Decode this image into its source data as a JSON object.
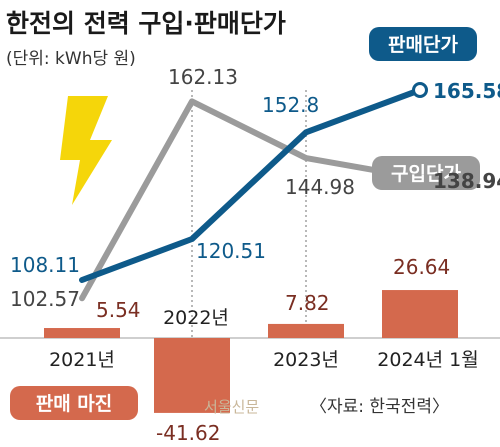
{
  "header": {
    "title": "한전의 전력 구입·판매단가",
    "unit": "(단위: kWh당 원)"
  },
  "legend": {
    "sell_label": "판매단가",
    "buy_label": "구입단가",
    "margin_label": "판매 마진"
  },
  "colors": {
    "sell": "#0e5a8a",
    "buy": "#9b9b9b",
    "margin": "#d4694d",
    "bolt": "#f5d60a"
  },
  "chart_data": {
    "type": "line+bar",
    "categories": [
      "2021년",
      "2022년",
      "2023년",
      "2024년 1월"
    ],
    "series": [
      {
        "name": "판매단가",
        "type": "line",
        "values": [
          108.11,
          120.51,
          152.8,
          165.58
        ]
      },
      {
        "name": "구입단가",
        "type": "line",
        "values": [
          102.57,
          162.13,
          144.98,
          138.94
        ]
      },
      {
        "name": "판매 마진",
        "type": "bar",
        "values": [
          5.54,
          -41.62,
          7.82,
          26.64
        ]
      }
    ]
  },
  "footer": {
    "credit": "〈자료: 한국전력〉",
    "watermark": "서울신문"
  }
}
